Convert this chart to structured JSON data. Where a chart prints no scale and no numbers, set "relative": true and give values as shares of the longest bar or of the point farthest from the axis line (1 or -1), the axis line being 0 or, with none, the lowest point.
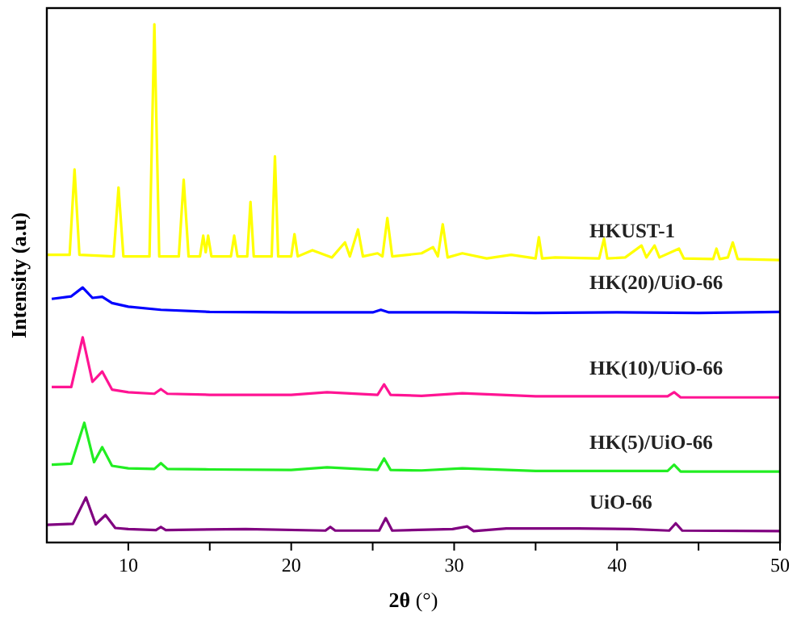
{
  "chart_data": {
    "type": "line",
    "relative": true,
    "xlabel": "2θ (°)",
    "ylabel": "Intensity (a.u)",
    "xlim": [
      5,
      50
    ],
    "xticks": [
      10,
      {
        "value": 15,
        "label": null
      },
      20,
      {
        "value": 25,
        "label": null
      },
      30,
      {
        "value": 35,
        "label": null
      },
      40,
      {
        "value": 45,
        "label": null
      },
      50
    ],
    "series": [
      {
        "name": "HKUST-1",
        "color": "#ffff00",
        "x": [
          5,
          6.4,
          6.7,
          7.0,
          9.1,
          9.4,
          9.7,
          11.3,
          11.6,
          11.9,
          13.1,
          13.4,
          13.7,
          14.4,
          14.6,
          14.75,
          14.9,
          15.1,
          16.3,
          16.5,
          16.7,
          17.3,
          17.5,
          17.7,
          18.8,
          19.0,
          19.2,
          20.0,
          20.2,
          20.4,
          21.3,
          22.5,
          23.3,
          23.6,
          24.1,
          24.4,
          25.3,
          25.6,
          25.9,
          26.2,
          28.0,
          28.7,
          29.0,
          29.3,
          29.6,
          30.5,
          32,
          33.5,
          35.0,
          35.2,
          35.4,
          36.2,
          38.9,
          39.2,
          39.4,
          40.5,
          41.5,
          41.8,
          42.3,
          42.6,
          43.8,
          44.1,
          45.9,
          46.1,
          46.3,
          46.8,
          47.1,
          47.4,
          50
        ],
        "values": [
          0.555,
          0.555,
          0.72,
          0.555,
          0.552,
          0.685,
          0.552,
          0.552,
          1.0,
          0.552,
          0.552,
          0.7,
          0.552,
          0.552,
          0.592,
          0.56,
          0.592,
          0.552,
          0.552,
          0.592,
          0.552,
          0.552,
          0.657,
          0.552,
          0.552,
          0.745,
          0.552,
          0.552,
          0.595,
          0.552,
          0.564,
          0.55,
          0.579,
          0.552,
          0.604,
          0.552,
          0.558,
          0.552,
          0.626,
          0.552,
          0.558,
          0.57,
          0.552,
          0.614,
          0.55,
          0.558,
          0.548,
          0.555,
          0.548,
          0.589,
          0.548,
          0.55,
          0.548,
          0.586,
          0.548,
          0.55,
          0.573,
          0.55,
          0.573,
          0.55,
          0.567,
          0.548,
          0.547,
          0.567,
          0.547,
          0.55,
          0.579,
          0.547,
          0.545
        ]
      },
      {
        "name": "HK(20)/UiO-66",
        "color": "#0000ff",
        "x": [
          5.3,
          6.5,
          7.2,
          7.8,
          8.4,
          9.0,
          10.0,
          12,
          15,
          20,
          25,
          25.5,
          26,
          30,
          35,
          40,
          45,
          50
        ],
        "values": [
          0.47,
          0.475,
          0.492,
          0.472,
          0.474,
          0.462,
          0.455,
          0.449,
          0.445,
          0.444,
          0.444,
          0.449,
          0.444,
          0.444,
          0.443,
          0.444,
          0.443,
          0.445
        ]
      },
      {
        "name": "HK(10)/UiO-66",
        "color": "#ff1493",
        "x": [
          5.3,
          6.5,
          7.2,
          7.8,
          8.4,
          9.0,
          10,
          11.6,
          12,
          12.4,
          15,
          20,
          22.2,
          25.3,
          25.7,
          26.1,
          28,
          30.5,
          35,
          40,
          43.1,
          43.5,
          43.9,
          50
        ],
        "values": [
          0.3,
          0.3,
          0.396,
          0.31,
          0.33,
          0.295,
          0.29,
          0.287,
          0.296,
          0.287,
          0.285,
          0.285,
          0.29,
          0.285,
          0.305,
          0.285,
          0.283,
          0.288,
          0.282,
          0.282,
          0.282,
          0.29,
          0.28,
          0.28
        ]
      },
      {
        "name": "HK(5)/UiO-66",
        "color": "#22ee22",
        "x": [
          5.3,
          6.5,
          7.3,
          7.9,
          8.4,
          9.0,
          10,
          11.6,
          12,
          12.4,
          15,
          20,
          22.2,
          25.3,
          25.7,
          26.1,
          28,
          30.5,
          35,
          40,
          43.1,
          43.5,
          43.9,
          50
        ],
        "values": [
          0.15,
          0.152,
          0.231,
          0.155,
          0.184,
          0.148,
          0.143,
          0.142,
          0.153,
          0.142,
          0.141,
          0.14,
          0.145,
          0.14,
          0.162,
          0.14,
          0.139,
          0.143,
          0.138,
          0.138,
          0.138,
          0.15,
          0.137,
          0.137
        ]
      },
      {
        "name": "UiO-66",
        "color": "#800080",
        "x": [
          5,
          6.6,
          7.4,
          8.0,
          8.6,
          9.2,
          10,
          11.7,
          12.0,
          12.3,
          17.2,
          22.1,
          22.4,
          22.7,
          25.4,
          25.8,
          26.2,
          29.9,
          30.8,
          31.2,
          33.2,
          35.8,
          37.6,
          40.9,
          43.2,
          43.6,
          44.0,
          50
        ],
        "values": [
          0.034,
          0.036,
          0.087,
          0.035,
          0.053,
          0.028,
          0.026,
          0.024,
          0.03,
          0.024,
          0.026,
          0.023,
          0.03,
          0.023,
          0.023,
          0.047,
          0.023,
          0.026,
          0.031,
          0.022,
          0.027,
          0.027,
          0.027,
          0.026,
          0.023,
          0.037,
          0.023,
          0.022
        ]
      }
    ]
  }
}
